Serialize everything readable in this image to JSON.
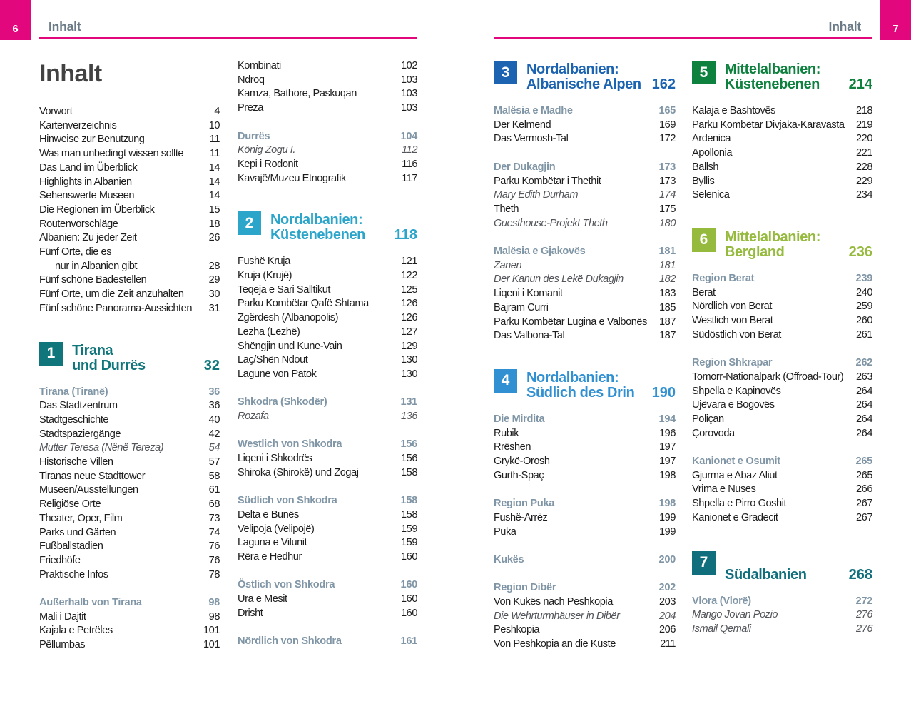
{
  "title": "Inhalt",
  "header": {
    "left": {
      "page_num": "6",
      "label": "Inhalt"
    },
    "right": {
      "page_num": "7",
      "label": "Inhalt"
    }
  },
  "colors": {
    "accent_pink": "#E3077D",
    "running_head_gray": "#6B7A87",
    "subhead_blue_gray": "#8096A6",
    "body_text": "#1D1D1D",
    "italic_gray": "#53555A",
    "title_gray": "#424242",
    "section_1_teal": "#11767B",
    "section_2_cyan": "#2BA6CA",
    "section_3_blue": "#1C64B1",
    "section_4_light_blue": "#3090D1",
    "section_5_green": "#0F813F",
    "section_6_light_green": "#96BA3D",
    "section_7_teal": "#116E7C"
  },
  "columns": [
    [
      {
        "t": "row",
        "label": "Vorwort",
        "page": "4"
      },
      {
        "t": "row",
        "label": "Kartenverzeichnis",
        "page": "10"
      },
      {
        "t": "row",
        "label": "Hinweise zur Benutzung",
        "page": "11"
      },
      {
        "t": "row",
        "label": "Was man unbedingt wissen sollte",
        "page": "11"
      },
      {
        "t": "row",
        "label": "Das Land im Überblick",
        "page": "14"
      },
      {
        "t": "row",
        "label": "Highlights in Albanien",
        "page": "14"
      },
      {
        "t": "row",
        "label": "Sehenswerte Museen",
        "page": "14"
      },
      {
        "t": "row",
        "label": "Die Regionen im Überblick",
        "page": "15"
      },
      {
        "t": "row",
        "label": "Routenvorschläge",
        "page": "18"
      },
      {
        "t": "row",
        "label": "Albanien: Zu jeder Zeit",
        "page": "26"
      },
      {
        "t": "row",
        "label": "Fünf Orte, die es",
        "page": ""
      },
      {
        "t": "cont",
        "label": "nur in Albanien gibt",
        "page": "28"
      },
      {
        "t": "row",
        "label": "Fünf schöne Badestellen",
        "page": "29"
      },
      {
        "t": "row",
        "label": "Fünf Orte, um die Zeit anzuhalten",
        "page": "30"
      },
      {
        "t": "row",
        "label": "Fünf schöne Panorama-Aussichten",
        "page": "31"
      },
      {
        "t": "sec",
        "num": "1",
        "lines": [
          "Tirana",
          "und Durrës"
        ],
        "page": "32",
        "color": "#11767B"
      },
      {
        "t": "sub",
        "label": "Tirana (Tiranë)",
        "page": "36"
      },
      {
        "t": "row",
        "label": "Das Stadtzentrum",
        "page": "36"
      },
      {
        "t": "row",
        "label": "Stadtgeschichte",
        "page": "40"
      },
      {
        "t": "row",
        "label": "Stadtspaziergänge",
        "page": "42"
      },
      {
        "t": "it",
        "label": "Mutter Teresa (Nënë Tereza)",
        "page": "54"
      },
      {
        "t": "row",
        "label": "Historische Villen",
        "page": "57"
      },
      {
        "t": "row",
        "label": "Tiranas neue Stadttower",
        "page": "58"
      },
      {
        "t": "row",
        "label": "Museen/Ausstellungen",
        "page": "61"
      },
      {
        "t": "row",
        "label": "Religiöse Orte",
        "page": "68"
      },
      {
        "t": "row",
        "label": "Theater, Oper, Film",
        "page": "73"
      },
      {
        "t": "row",
        "label": "Parks und Gärten",
        "page": "74"
      },
      {
        "t": "row",
        "label": "Fußballstadien",
        "page": "76"
      },
      {
        "t": "row",
        "label": "Friedhöfe",
        "page": "76"
      },
      {
        "t": "row",
        "label": "Praktische Infos",
        "page": "78"
      },
      {
        "t": "gap"
      },
      {
        "t": "sub",
        "label": "Außerhalb von Tirana",
        "page": "98"
      },
      {
        "t": "row",
        "label": "Mali i Dajtit",
        "page": "98"
      },
      {
        "t": "row",
        "label": "Kajala e Petrëles",
        "page": "101"
      },
      {
        "t": "row",
        "label": "Pëllumbas",
        "page": "101"
      }
    ],
    [
      {
        "t": "row",
        "label": "Kombinati",
        "page": "102"
      },
      {
        "t": "row",
        "label": "Ndroq",
        "page": "103"
      },
      {
        "t": "row",
        "label": "Kamza, Bathore, Paskuqan",
        "page": "103"
      },
      {
        "t": "row",
        "label": "Preza",
        "page": "103"
      },
      {
        "t": "gap"
      },
      {
        "t": "sub",
        "label": "Durrës",
        "page": "104"
      },
      {
        "t": "it",
        "label": "König Zogu I.",
        "page": "112"
      },
      {
        "t": "row",
        "label": "Kepi i Rodonit",
        "page": "116"
      },
      {
        "t": "row",
        "label": "Kavajë/Muzeu Etnografik",
        "page": "117"
      },
      {
        "t": "sec",
        "num": "2",
        "lines": [
          "Nordalbanien:",
          "Küstenebenen"
        ],
        "page": "118",
        "color": "#2BA6CA"
      },
      {
        "t": "row",
        "label": "Fushë Kruja",
        "page": "121"
      },
      {
        "t": "row",
        "label": "Kruja (Krujë)",
        "page": "122"
      },
      {
        "t": "row",
        "label": "Teqeja e Sari Salltikut",
        "page": "125"
      },
      {
        "t": "row",
        "label": "Parku Kombëtar Qafë Shtama",
        "page": "126"
      },
      {
        "t": "row",
        "label": "Zgërdesh (Albanopolis)",
        "page": "126"
      },
      {
        "t": "row",
        "label": "Lezha (Lezhë)",
        "page": "127"
      },
      {
        "t": "row",
        "label": "Shëngjin und Kune-Vain",
        "page": "129"
      },
      {
        "t": "row",
        "label": "Laç/Shën Ndout",
        "page": "130"
      },
      {
        "t": "row",
        "label": "Lagune von Patok",
        "page": "130"
      },
      {
        "t": "gap"
      },
      {
        "t": "sub",
        "label": "Shkodra (Shkodër)",
        "page": "131"
      },
      {
        "t": "it",
        "label": "Rozafa",
        "page": "136"
      },
      {
        "t": "gap"
      },
      {
        "t": "sub",
        "label": "Westlich von Shkodra",
        "page": "156"
      },
      {
        "t": "row",
        "label": "Liqeni i Shkodrës",
        "page": "156"
      },
      {
        "t": "row",
        "label": "Shiroka (Shirokë) und Zogaj",
        "page": "158"
      },
      {
        "t": "gap"
      },
      {
        "t": "sub",
        "label": "Südlich von Shkodra",
        "page": "158"
      },
      {
        "t": "row",
        "label": "Delta e Bunës",
        "page": "158"
      },
      {
        "t": "row",
        "label": "Velipoja (Velipojë)",
        "page": "159"
      },
      {
        "t": "row",
        "label": "Laguna e Vilunit",
        "page": "159"
      },
      {
        "t": "row",
        "label": "Rëra e Hedhur",
        "page": "160"
      },
      {
        "t": "gap"
      },
      {
        "t": "sub",
        "label": "Östlich von Shkodra",
        "page": "160"
      },
      {
        "t": "row",
        "label": "Ura e Mesit",
        "page": "160"
      },
      {
        "t": "row",
        "label": "Drisht",
        "page": "160"
      },
      {
        "t": "gap"
      },
      {
        "t": "sub",
        "label": "Nördlich von Shkodra",
        "page": "161"
      }
    ],
    [
      {
        "t": "sec",
        "num": "3",
        "lines": [
          "Nordalbanien:",
          "Albanische Alpen"
        ],
        "page": "162",
        "color": "#1C64B1",
        "first": true
      },
      {
        "t": "sub",
        "label": "Malësia e Madhe",
        "page": "165"
      },
      {
        "t": "row",
        "label": "Der Kelmend",
        "page": "169"
      },
      {
        "t": "row",
        "label": "Das Vermosh-Tal",
        "page": "172"
      },
      {
        "t": "gap"
      },
      {
        "t": "sub",
        "label": "Der Dukagjin",
        "page": "173"
      },
      {
        "t": "row",
        "label": "Parku Kombëtar i Thethit",
        "page": "173"
      },
      {
        "t": "it",
        "label": "Mary Edith Durham",
        "page": "174"
      },
      {
        "t": "row",
        "label": "Theth",
        "page": "175"
      },
      {
        "t": "it",
        "label": "Guesthouse-Projekt Theth",
        "page": "180"
      },
      {
        "t": "gap"
      },
      {
        "t": "sub",
        "label": "Malësia e Gjakovës",
        "page": "181"
      },
      {
        "t": "it",
        "label": "Zanen",
        "page": "181"
      },
      {
        "t": "it",
        "label": "Der Kanun des Lekë Dukagjin",
        "page": "182"
      },
      {
        "t": "row",
        "label": "Liqeni i Komanit",
        "page": "183"
      },
      {
        "t": "row",
        "label": "Bajram Curri",
        "page": "185"
      },
      {
        "t": "row",
        "label": "Parku Kombëtar Lugina e Valbonës",
        "page": "187"
      },
      {
        "t": "row",
        "label": "Das Valbona-Tal",
        "page": "187"
      },
      {
        "t": "sec",
        "num": "4",
        "lines": [
          "Nordalbanien:",
          "Südlich des Drin"
        ],
        "page": "190",
        "color": "#3090D1"
      },
      {
        "t": "sub",
        "label": "Die Mirdita",
        "page": "194"
      },
      {
        "t": "row",
        "label": "Rubik",
        "page": "196"
      },
      {
        "t": "row",
        "label": "Rrëshen",
        "page": "197"
      },
      {
        "t": "row",
        "label": "Grykë-Orosh",
        "page": "197"
      },
      {
        "t": "row",
        "label": "Gurth-Spaç",
        "page": "198"
      },
      {
        "t": "gap"
      },
      {
        "t": "sub",
        "label": "Region Puka",
        "page": "198"
      },
      {
        "t": "row",
        "label": "Fushë-Arrëz",
        "page": "199"
      },
      {
        "t": "row",
        "label": "Puka",
        "page": "199"
      },
      {
        "t": "gap"
      },
      {
        "t": "sub",
        "label": "Kukës",
        "page": "200"
      },
      {
        "t": "gap"
      },
      {
        "t": "sub",
        "label": "Region Dibër",
        "page": "202"
      },
      {
        "t": "row",
        "label": "Von Kukës nach Peshkopia",
        "page": "203"
      },
      {
        "t": "it",
        "label": "Die Wehrturmhäuser in Dibër",
        "page": "204"
      },
      {
        "t": "row",
        "label": "Peshkopia",
        "page": "206"
      },
      {
        "t": "row",
        "label": "Von Peshkopia an die Küste",
        "page": "211"
      }
    ],
    [
      {
        "t": "sec",
        "num": "5",
        "lines": [
          "Mittelalbanien:",
          "Küstenebenen"
        ],
        "page": "214",
        "color": "#0F813F",
        "first": true
      },
      {
        "t": "row",
        "label": "Kalaja e Bashtovës",
        "page": "218"
      },
      {
        "t": "row",
        "label": "Parku Kombëtar Divjaka-Karavasta",
        "page": "219"
      },
      {
        "t": "row",
        "label": "Ardenica",
        "page": "220"
      },
      {
        "t": "row",
        "label": "Apollonia",
        "page": "221"
      },
      {
        "t": "row",
        "label": "Ballsh",
        "page": "228"
      },
      {
        "t": "row",
        "label": "Byllis",
        "page": "229"
      },
      {
        "t": "row",
        "label": "Selenica",
        "page": "234"
      },
      {
        "t": "sec",
        "num": "6",
        "lines": [
          "Mittelalbanien:",
          "Bergland"
        ],
        "page": "236",
        "color": "#96BA3D"
      },
      {
        "t": "sub",
        "label": "Region Berat",
        "page": "239"
      },
      {
        "t": "row",
        "label": "Berat",
        "page": "240"
      },
      {
        "t": "row",
        "label": "Nördlich von Berat",
        "page": "259"
      },
      {
        "t": "row",
        "label": "Westlich von Berat",
        "page": "260"
      },
      {
        "t": "row",
        "label": "Südöstlich von Berat",
        "page": "261"
      },
      {
        "t": "gap"
      },
      {
        "t": "sub",
        "label": "Region Shkrapar",
        "page": "262"
      },
      {
        "t": "row",
        "label": "Tomorr-Nationalpark (Offroad-Tour)",
        "page": "263"
      },
      {
        "t": "row",
        "label": "Shpella e Kapinovës",
        "page": "264"
      },
      {
        "t": "row",
        "label": "Ujëvara e Bogovës",
        "page": "264"
      },
      {
        "t": "row",
        "label": "Poliçan",
        "page": "264"
      },
      {
        "t": "row",
        "label": "Çorovoda",
        "page": "264"
      },
      {
        "t": "gap"
      },
      {
        "t": "sub",
        "label": "Kanionet e Osumit",
        "page": "265"
      },
      {
        "t": "row",
        "label": "Gjurma e Abaz Aliut",
        "page": "265"
      },
      {
        "t": "row",
        "label": "Vrima e Nuses",
        "page": "266"
      },
      {
        "t": "row",
        "label": "Shpella e Pirro Goshit",
        "page": "267"
      },
      {
        "t": "row",
        "label": "Kanionet e Gradecit",
        "page": "267"
      },
      {
        "t": "sec",
        "num": "7",
        "lines": [
          "Südalbanien"
        ],
        "page": "268",
        "color": "#116E7C"
      },
      {
        "t": "sub",
        "label": "Vlora (Vlorë)",
        "page": "272"
      },
      {
        "t": "it",
        "label": "Marigo Jovan Pozio",
        "page": "276"
      },
      {
        "t": "it",
        "label": "Ismail Qemali",
        "page": "276"
      }
    ]
  ]
}
